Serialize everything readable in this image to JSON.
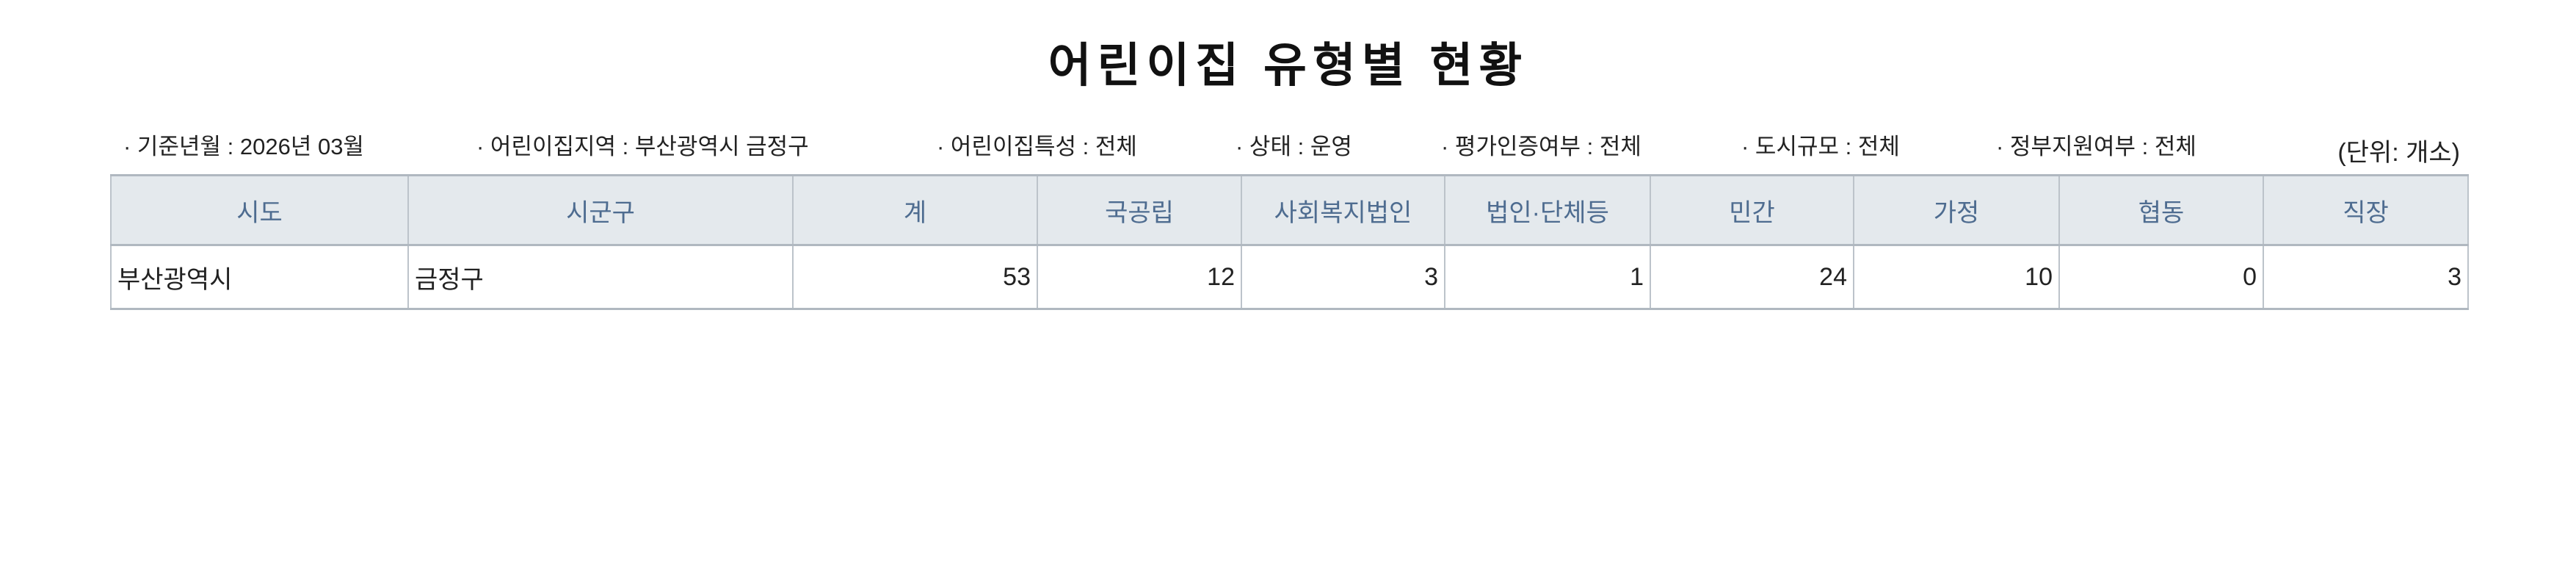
{
  "title": "어린이집 유형별 현황",
  "filters": [
    "· 기준년월 : 2026년 03월",
    "· 어린이집지역 : 부산광역시 금정구",
    "· 어린이집특성 : 전체",
    "· 상태 : 운영",
    "· 평가인증여부 : 전체",
    "· 도시규모 : 전체",
    "· 정부지원여부 : 전체"
  ],
  "unit": "(단위: 개소)",
  "table": {
    "headers": [
      "시도",
      "시군구",
      "계",
      "국공립",
      "사회복지법인",
      "법인·단체등",
      "민간",
      "가정",
      "협동",
      "직장"
    ],
    "rows": [
      [
        "부산광역시",
        "금정구",
        "53",
        "12",
        "3",
        "1",
        "24",
        "10",
        "0",
        "3"
      ]
    ]
  },
  "colors": {
    "header_bg": "#e4e9ed",
    "header_text": "#4e6c90",
    "border": "#bcc3ca"
  }
}
